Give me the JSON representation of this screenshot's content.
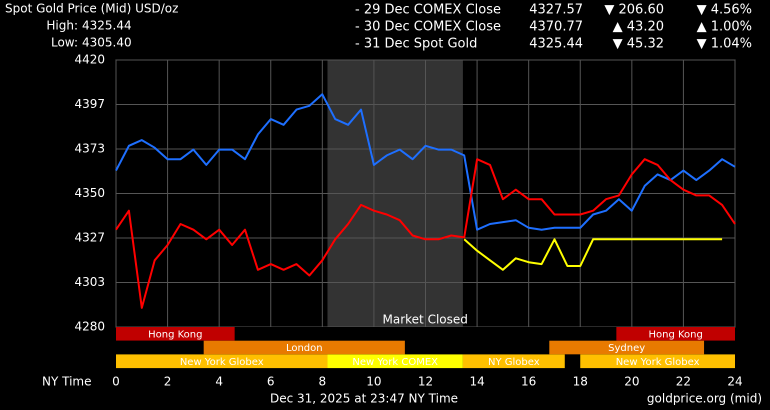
{
  "chart_data": {
    "type": "line",
    "title": "Spot Gold Price (Mid) USD/oz",
    "stats": [
      {
        "name": "High:",
        "value": 4325.44,
        "label": "4325.44"
      },
      {
        "name": "Low:",
        "value": 4305.4,
        "label": "4305.40"
      }
    ],
    "x_label": "NY Time",
    "footnote": "Dec 31, 2025 at 23:47 NY Time",
    "source": "goldprice.org (mid)",
    "xlim": [
      0,
      24
    ],
    "xticks": [
      0,
      2,
      4,
      6,
      8,
      10,
      12,
      14,
      16,
      18,
      20,
      22,
      24
    ],
    "ylim": [
      4280,
      4420
    ],
    "yticks": [
      {
        "value": 4280,
        "label": "4280"
      },
      {
        "value": 4303.33,
        "label": "4303"
      },
      {
        "value": 4326.67,
        "label": "4327"
      },
      {
        "value": 4350,
        "label": "4350"
      },
      {
        "value": 4373.33,
        "label": "4373"
      },
      {
        "value": 4396.67,
        "label": "4397"
      },
      {
        "value": 4420,
        "label": "4420"
      }
    ],
    "grid": true,
    "shaded": {
      "label": "Market Closed",
      "start": 8.2,
      "end": 13.45,
      "color": "#333333"
    },
    "sessions": [
      [
        {
          "name": "Hong Kong",
          "start": 0,
          "end": 4.6,
          "color": "#c00000"
        },
        {
          "name": "Hong Kong",
          "start": 19.4,
          "end": 24,
          "color": "#c00000"
        }
      ],
      [
        {
          "name": "London",
          "start": 3.4,
          "end": 11.2,
          "color": "#e87a00"
        },
        {
          "name": "Sydney",
          "start": 16.8,
          "end": 22.8,
          "color": "#e87a00"
        }
      ],
      [
        {
          "name": "New York Globex",
          "start": 0,
          "end": 8.2,
          "color": "#ffc000"
        },
        {
          "name": "New York COMEX",
          "start": 8.2,
          "end": 13.45,
          "color": "#ffff00"
        },
        {
          "name": "NY Globex",
          "start": 13.45,
          "end": 17.4,
          "color": "#ffc000"
        },
        {
          "name": "New York Globex",
          "start": 18,
          "end": 24,
          "color": "#ffc000"
        }
      ]
    ],
    "x": [
      0,
      0.5,
      1,
      1.5,
      2,
      2.5,
      3,
      3.5,
      4,
      4.5,
      5,
      5.5,
      6,
      6.5,
      7,
      7.5,
      8,
      8.5,
      9,
      9.5,
      10,
      10.5,
      11,
      11.5,
      12,
      12.5,
      13,
      13.5,
      14,
      14.5,
      15,
      15.5,
      16,
      16.5,
      17,
      17.5,
      18,
      18.5,
      19,
      19.5,
      20,
      20.5,
      21,
      21.5,
      22,
      22.5,
      23,
      23.5,
      24
    ],
    "series": [
      {
        "name": "- 29 Dec COMEX Close",
        "color": "#1e6fff",
        "close": {
          "value": 4327.57,
          "label": "4327.57"
        },
        "change": "▼ 206.60",
        "change_pct": "▼ 4.56%",
        "change_color": "#ff2020",
        "values": [
          4362,
          4375,
          4378,
          4374,
          4368,
          4368,
          4373,
          4365,
          4373,
          4373,
          4368,
          4381,
          4389,
          4386,
          4394,
          4396,
          4402,
          4389,
          4386,
          4394,
          4365,
          4370,
          4373,
          4368,
          4375,
          4373,
          4373,
          4370,
          4331,
          4334,
          4335,
          4336,
          4332,
          4331,
          4332,
          4332,
          4332,
          4339,
          4341,
          4347,
          4341,
          4354,
          4360,
          4357,
          4362,
          4357,
          4362,
          4368,
          4364
        ]
      },
      {
        "name": "- 30 Dec COMEX Close",
        "color": "#ff0000",
        "close": {
          "value": 4370.77,
          "label": "4370.77"
        },
        "change": "▲ 43.20",
        "change_pct": "▲ 1.00%",
        "change_color": "#20e020",
        "values": [
          4331,
          4341,
          4290,
          4315,
          4323,
          4334,
          4331,
          4326,
          4331,
          4323,
          4331,
          4310,
          4313,
          4310,
          4313,
          4307,
          4315,
          4326,
          4334,
          4344,
          4341,
          4339,
          4336,
          4328,
          4326,
          4326,
          4328,
          4327,
          4368,
          4365,
          4347,
          4352,
          4347,
          4347,
          4339,
          4339,
          4339,
          4341,
          4347,
          4349,
          4360,
          4368,
          4365,
          4357,
          4352,
          4349,
          4349,
          4344,
          4334
        ]
      },
      {
        "name": "- 31 Dec Spot Gold",
        "color": "#ffff00",
        "close": {
          "value": 4325.44,
          "label": "4325.44"
        },
        "change": "▼ 45.32",
        "change_pct": "▼ 1.04%",
        "change_color": "#ff2020",
        "values": [
          null,
          null,
          null,
          null,
          null,
          null,
          null,
          null,
          null,
          null,
          null,
          null,
          null,
          null,
          null,
          null,
          null,
          null,
          null,
          null,
          null,
          null,
          null,
          null,
          null,
          null,
          null,
          4326,
          4320,
          4315,
          4310,
          4316,
          4314,
          4313,
          4326,
          4312,
          4312,
          4326,
          4326,
          4326,
          4326,
          4326,
          4326,
          4326,
          4326,
          4326,
          4326,
          4326,
          null
        ]
      }
    ]
  }
}
